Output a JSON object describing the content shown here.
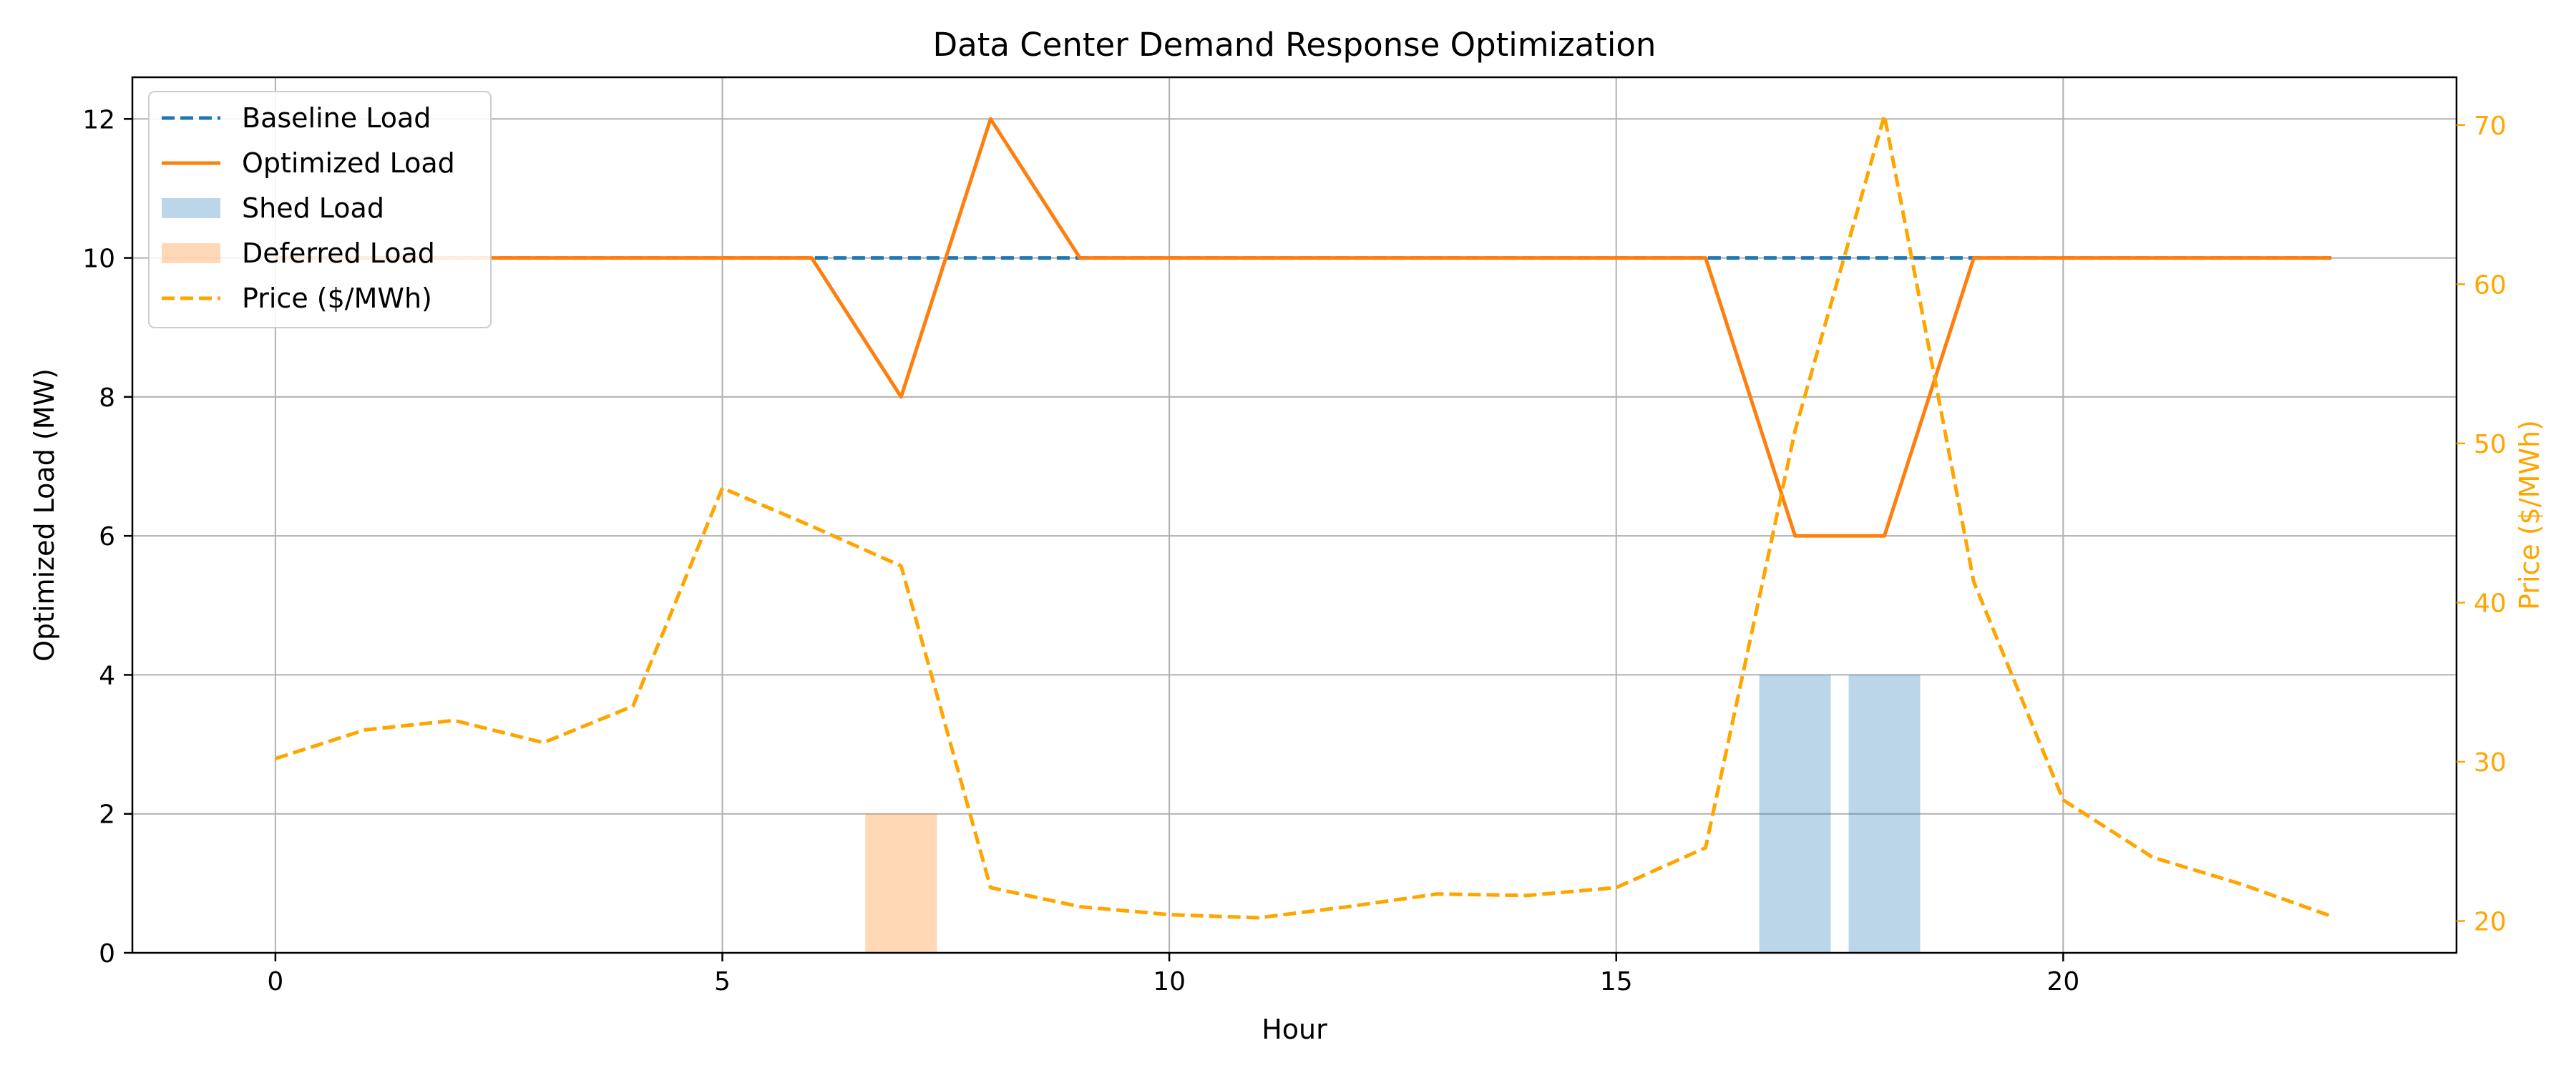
{
  "chart_data": {
    "type": "line",
    "title": "Data Center Demand Response Optimization",
    "xlabel": "Hour",
    "ylabel": "Optimized Load (MW)",
    "y2label": "Price ($/MWh)",
    "xlim": [
      -1.6,
      24.4
    ],
    "ylim": [
      0,
      12.6
    ],
    "y2lim": [
      18,
      73
    ],
    "xticks": [
      0,
      5,
      10,
      15,
      20
    ],
    "yticks": [
      0,
      2,
      4,
      6,
      8,
      10,
      12
    ],
    "y2ticks": [
      20,
      30,
      40,
      50,
      60,
      70
    ],
    "grid": true,
    "legend_position": "top-left",
    "hours": [
      0,
      1,
      2,
      3,
      4,
      5,
      6,
      7,
      8,
      9,
      10,
      11,
      12,
      13,
      14,
      15,
      16,
      17,
      18,
      19,
      20,
      21,
      22,
      23
    ],
    "series": [
      {
        "name": "Baseline Load",
        "style": "dashed",
        "color": "#1f77b4",
        "axis": "left",
        "values": [
          10,
          10,
          10,
          10,
          10,
          10,
          10,
          10,
          10,
          10,
          10,
          10,
          10,
          10,
          10,
          10,
          10,
          10,
          10,
          10,
          10,
          10,
          10,
          10
        ]
      },
      {
        "name": "Optimized Load",
        "style": "solid",
        "color": "#ff7f0e",
        "axis": "left",
        "values": [
          10,
          10,
          10,
          10,
          10,
          10,
          10,
          8,
          12,
          10,
          10,
          10,
          10,
          10,
          10,
          10,
          10,
          6,
          6,
          10,
          10,
          10,
          10,
          10
        ]
      },
      {
        "name": "Price ($/MWh)",
        "style": "dashed",
        "color": "#ffa500",
        "axis": "right",
        "values": [
          30.2,
          32.0,
          32.6,
          31.2,
          33.5,
          47.2,
          44.8,
          42.3,
          22.1,
          20.9,
          20.4,
          20.2,
          20.9,
          21.7,
          21.6,
          22.1,
          24.6,
          50.8,
          70.6,
          41.3,
          27.6,
          24.0,
          22.3,
          20.3
        ]
      }
    ],
    "bars": [
      {
        "name": "Shed Load",
        "color": "#1f77b4",
        "alpha": 0.3,
        "x": [
          17,
          18
        ],
        "values": [
          4,
          4
        ]
      },
      {
        "name": "Deferred Load",
        "color": "#ff7f0e",
        "alpha": 0.3,
        "x": [
          7
        ],
        "values": [
          2
        ]
      }
    ]
  }
}
